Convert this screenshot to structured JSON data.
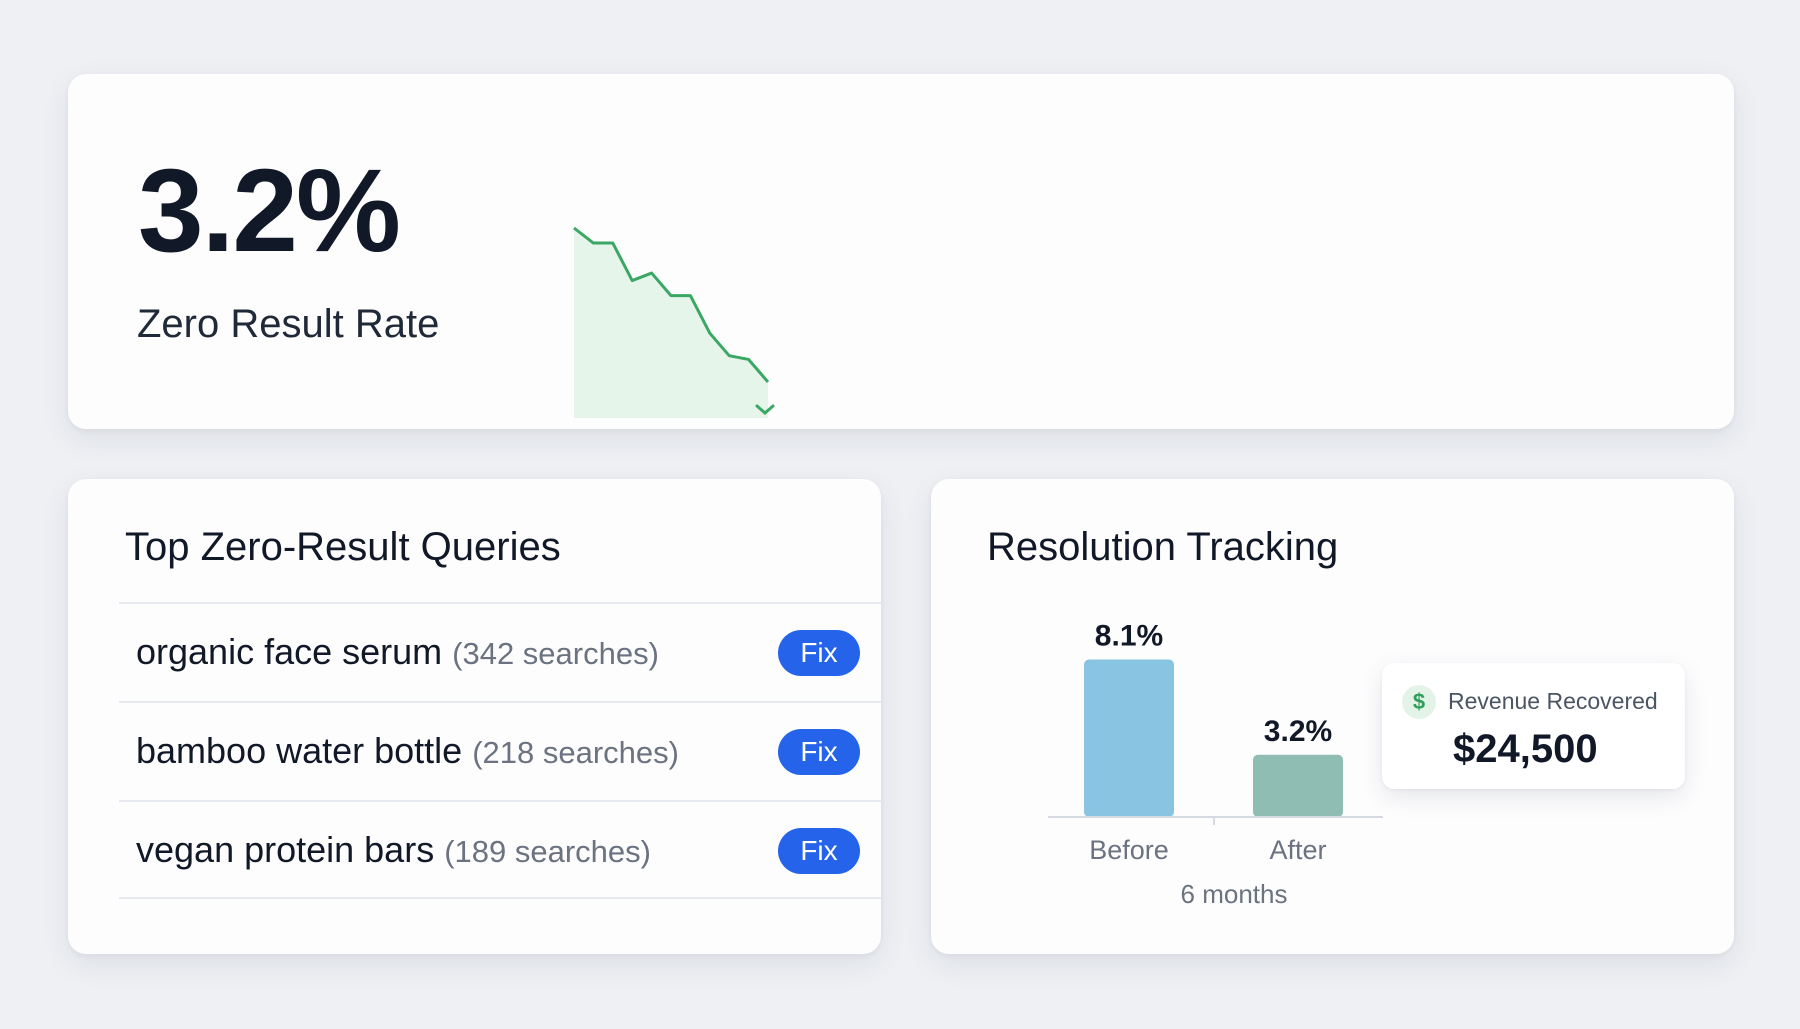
{
  "kpi": {
    "value": "3.2%",
    "label": "Zero Result Rate",
    "trend_color": "#3aa864",
    "sparkline_fill": "#e6f5ea",
    "sparkline": [
      9.4,
      9.0,
      9.0,
      8.0,
      8.2,
      7.6,
      7.6,
      6.6,
      6.0,
      5.9,
      5.3
    ],
    "trend_direction": "down"
  },
  "queries": {
    "title": "Top Zero-Result Queries",
    "rows": [
      {
        "query": "organic face serum",
        "count": "(342 searches)",
        "action": "Fix"
      },
      {
        "query": "bamboo water bottle",
        "count": "(218 searches)",
        "action": "Fix"
      },
      {
        "query": "vegan protein bars",
        "count": "(189 searches)",
        "action": "Fix"
      }
    ],
    "button_color": "#2563eb"
  },
  "resolution": {
    "title": "Resolution Tracking",
    "period": "6 months",
    "revenue": {
      "icon": "dollar-icon",
      "label": "Revenue Recovered",
      "value": "$24,500"
    }
  },
  "chart_data": {
    "type": "bar",
    "categories": [
      "Before",
      "After"
    ],
    "values": [
      8.1,
      3.2
    ],
    "value_labels": [
      "8.1%",
      "3.2%"
    ],
    "colors": [
      "#89c4e3",
      "#8fbcb3"
    ],
    "xlabel": "6 months",
    "ylabel": "",
    "ylim": [
      0,
      9
    ]
  }
}
